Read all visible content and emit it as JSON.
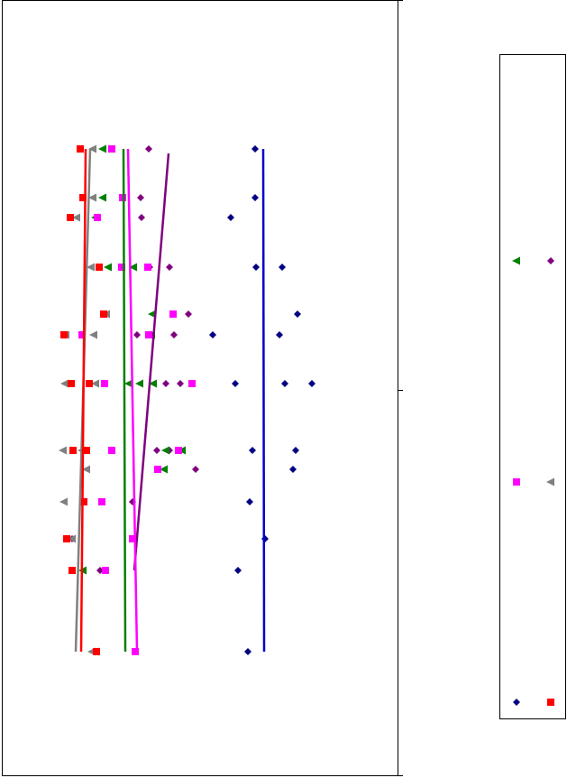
{
  "chart_data": {
    "type": "scatter",
    "xlim": [
      0,
      440
    ],
    "ylim": [
      860,
      0
    ],
    "series": [
      {
        "color": "#000080",
        "line_color": "#0000cc",
        "marker": "diamond",
        "x": [
          281,
          281,
          254,
          282,
          311,
          328,
          234,
          308,
          259,
          314,
          344,
          278,
          326,
          323,
          275,
          292,
          262,
          273
        ],
        "y": [
          165,
          219,
          241,
          296,
          296,
          348,
          371,
          371,
          425,
          425,
          425,
          499,
          499,
          520,
          556,
          597,
          632,
          722
        ],
        "trend": {
          "x": [
            290,
            291
          ],
          "y": [
            165,
            722
          ]
        }
      },
      {
        "color": "#800080",
        "line_color": "#800080",
        "marker": "diamond",
        "x": [
          163,
          154,
          155,
          164,
          186,
          207,
          150,
          191,
          182,
          198,
          172,
          186,
          215,
          145,
          78,
          109
        ],
        "y": [
          165,
          219,
          241,
          296,
          296,
          348,
          371,
          371,
          425,
          425,
          499,
          499,
          520,
          556,
          597,
          632
        ],
        "trend": {
          "x": [
            185,
            147
          ],
          "y": [
            170,
            632
          ]
        }
      },
      {
        "color": "#008000",
        "line_color": "#008000",
        "marker": "triangle-left",
        "x": [
          112,
          112,
          104,
          118,
          146,
          167,
          166,
          141,
          153,
          168,
          182,
          200,
          180,
          90,
          104
        ],
        "y": [
          165,
          219,
          241,
          296,
          296,
          348,
          371,
          425,
          425,
          425,
          499,
          499,
          520,
          632,
          722
        ],
        "trend": {
          "x": [
            135,
            137
          ],
          "y": [
            165,
            722
          ]
        }
      },
      {
        "color": "#ff00ff",
        "line_color": "#ff00ff",
        "marker": "square",
        "x": [
          122,
          134,
          106,
          133,
          162,
          190,
          163,
          89,
          114,
          211,
          122,
          196,
          173,
          111,
          145,
          115,
          148
        ],
        "y": [
          165,
          219,
          241,
          296,
          296,
          348,
          371,
          371,
          425,
          425,
          499,
          499,
          520,
          556,
          597,
          632,
          722
        ],
        "trend": {
          "x": [
            140,
            150
          ],
          "y": [
            165,
            722
          ]
        }
      },
      {
        "color": "#808080",
        "line_color": "#808080",
        "marker": "triangle-left",
        "x": [
          101,
          101,
          83,
          99,
          116,
          71,
          102,
          70,
          104,
          68,
          89,
          94,
          69,
          78,
          100
        ],
        "y": [
          165,
          219,
          241,
          296,
          348,
          371,
          371,
          425,
          425,
          499,
          499,
          520,
          556,
          597,
          722
        ],
        "trend": {
          "x": [
            98,
            82
          ],
          "y": [
            165,
            722
          ]
        }
      },
      {
        "color": "#ff0000",
        "line_color": "#ff0000",
        "marker": "square",
        "x": [
          87,
          90,
          76,
          108,
          113,
          69,
          77,
          97,
          79,
          94,
          91,
          72,
          78,
          105
        ],
        "y": [
          165,
          219,
          241,
          296,
          348,
          371,
          425,
          425,
          499,
          499,
          556,
          597,
          632,
          722
        ],
        "trend": {
          "x": [
            93,
            88
          ],
          "y": [
            165,
            722
          ]
        }
      }
    ],
    "legend_order": [
      2,
      1,
      3,
      4,
      0,
      5
    ]
  }
}
